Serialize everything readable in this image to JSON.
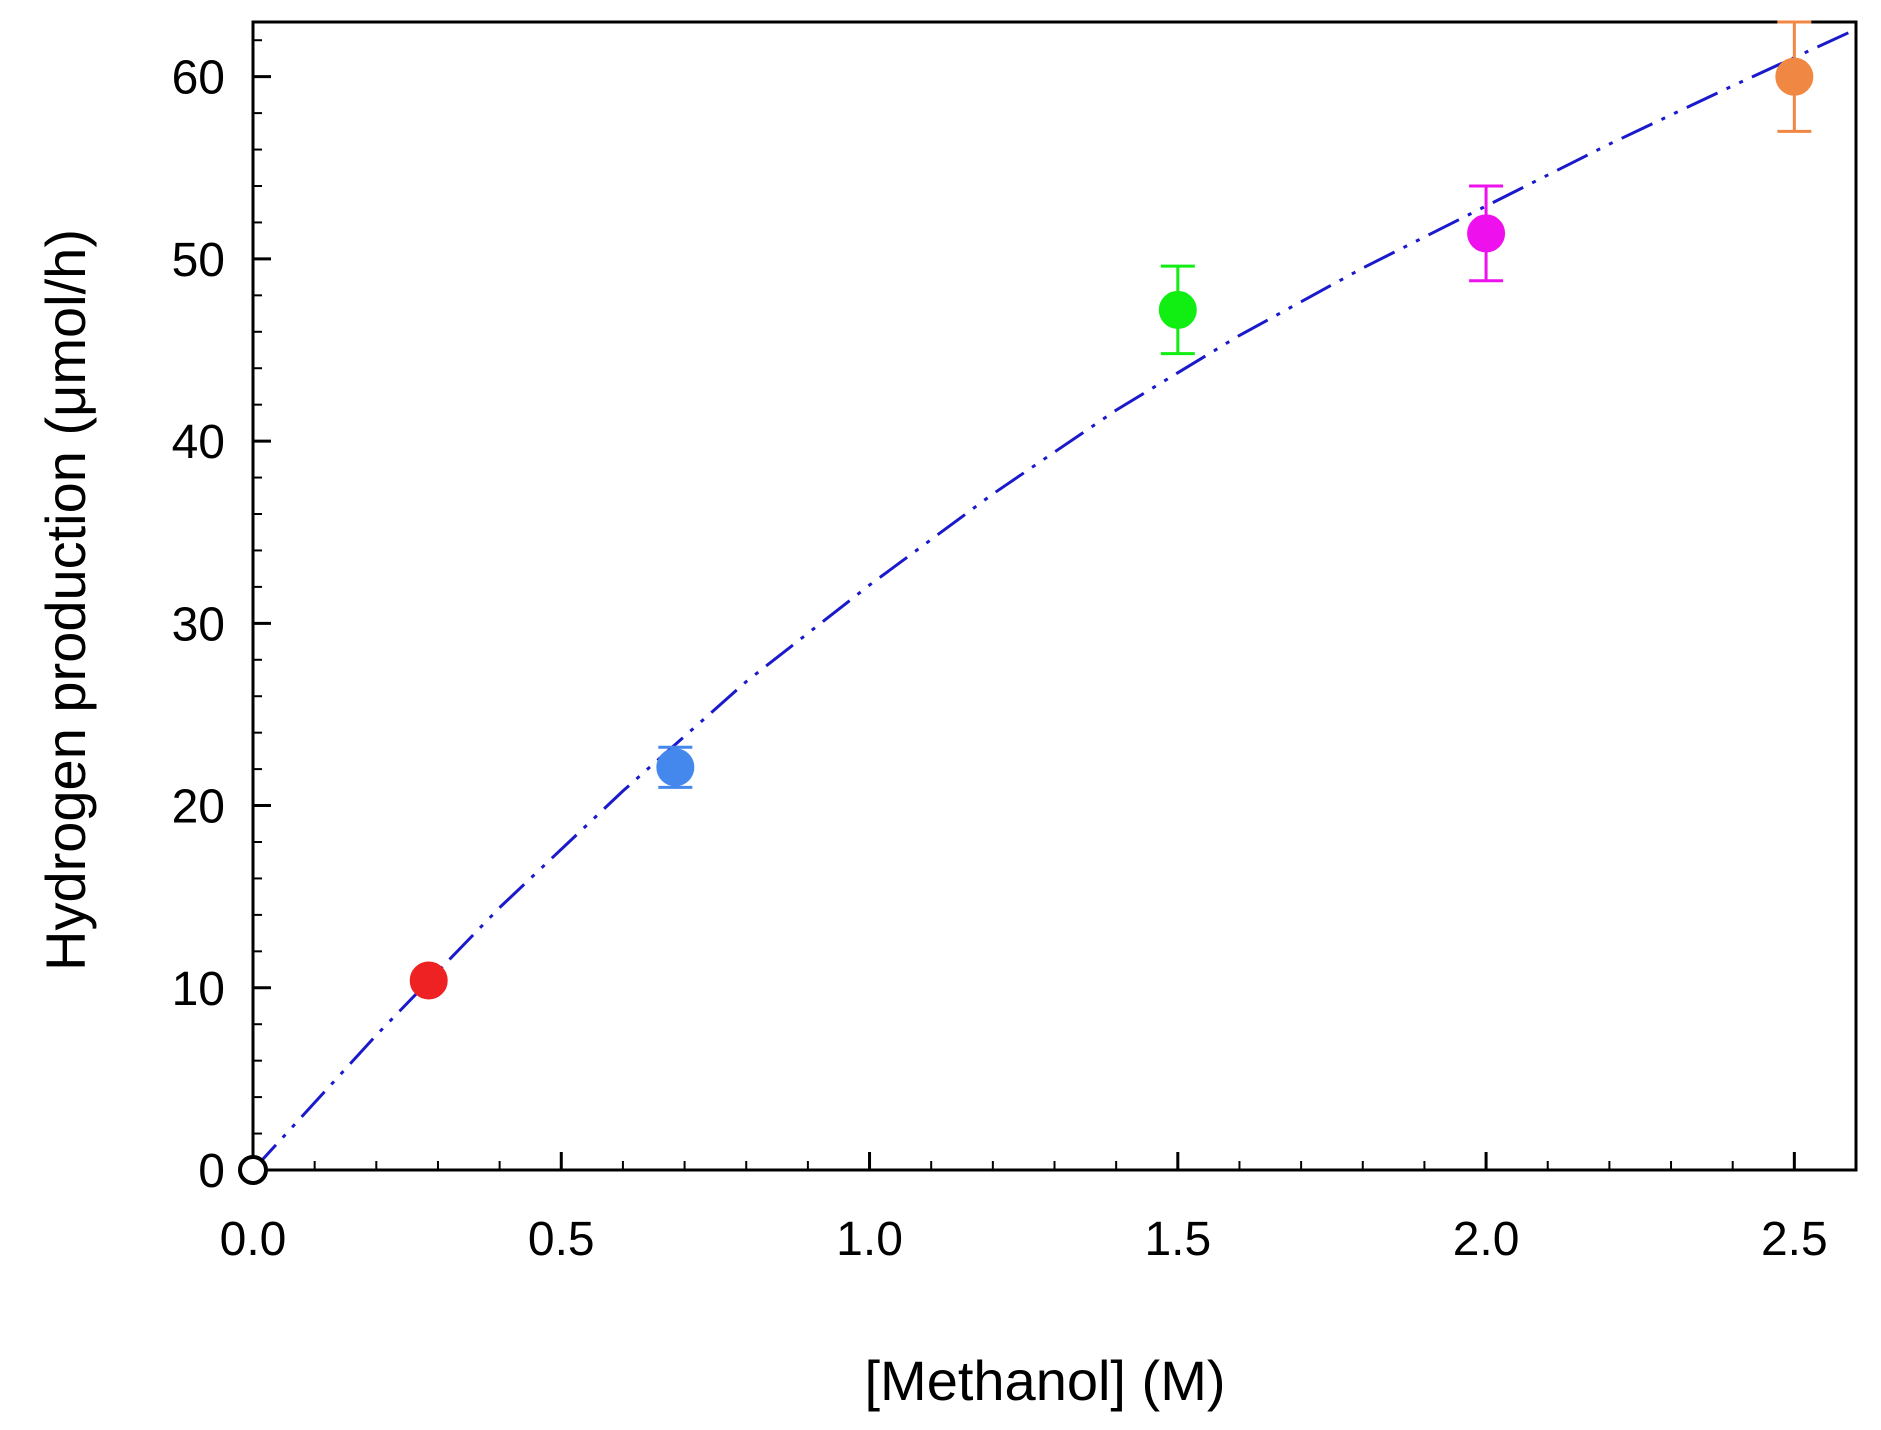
{
  "chart_data": {
    "type": "scatter",
    "title": "",
    "xlabel": "[Methanol] (M)",
    "ylabel": "Hydrogen production (μmol/h)",
    "xlim": [
      0,
      2.6
    ],
    "ylim": [
      0,
      63
    ],
    "x_ticks": [
      {
        "value": 0.0,
        "label": "0.0"
      },
      {
        "value": 0.5,
        "label": "0.5"
      },
      {
        "value": 1.0,
        "label": "1.0"
      },
      {
        "value": 1.5,
        "label": "1.5"
      },
      {
        "value": 2.0,
        "label": "2.0"
      },
      {
        "value": 2.5,
        "label": "2.5"
      }
    ],
    "x_minor_step": 0.1,
    "y_ticks": [
      {
        "value": 0,
        "label": "0"
      },
      {
        "value": 10,
        "label": "10"
      },
      {
        "value": 20,
        "label": "20"
      },
      {
        "value": 30,
        "label": "30"
      },
      {
        "value": 40,
        "label": "40"
      },
      {
        "value": 50,
        "label": "50"
      },
      {
        "value": 60,
        "label": "60"
      }
    ],
    "y_minor_step": 2,
    "grid": false,
    "legend": "none",
    "points": [
      {
        "x": 0.0,
        "y": 0.0,
        "err": 0,
        "color": "#000000",
        "filled": false
      },
      {
        "x": 0.285,
        "y": 10.4,
        "err": 0.4,
        "color": "#ee2222",
        "filled": true
      },
      {
        "x": 0.685,
        "y": 22.1,
        "err": 1.1,
        "color": "#4488ee",
        "filled": true
      },
      {
        "x": 1.5,
        "y": 47.2,
        "err": 2.4,
        "color": "#11ee11",
        "filled": true
      },
      {
        "x": 2.0,
        "y": 51.4,
        "err": 2.6,
        "color": "#ee11ee",
        "filled": true
      },
      {
        "x": 2.5,
        "y": 60.0,
        "err": 3.0,
        "color": "#f08844",
        "filled": true
      }
    ],
    "fit": {
      "style": "dash-dot-dot",
      "color": "#1a1acc",
      "x": [
        0.0,
        0.2,
        0.4,
        0.6,
        0.8,
        1.0,
        1.2,
        1.4,
        1.6,
        1.8,
        2.0,
        2.2,
        2.4,
        2.6
      ],
      "y": [
        0.0,
        7.4,
        14.4,
        20.8,
        26.8,
        32.1,
        37.1,
        41.7,
        45.8,
        49.5,
        52.9,
        56.3,
        59.5,
        62.6
      ]
    }
  }
}
